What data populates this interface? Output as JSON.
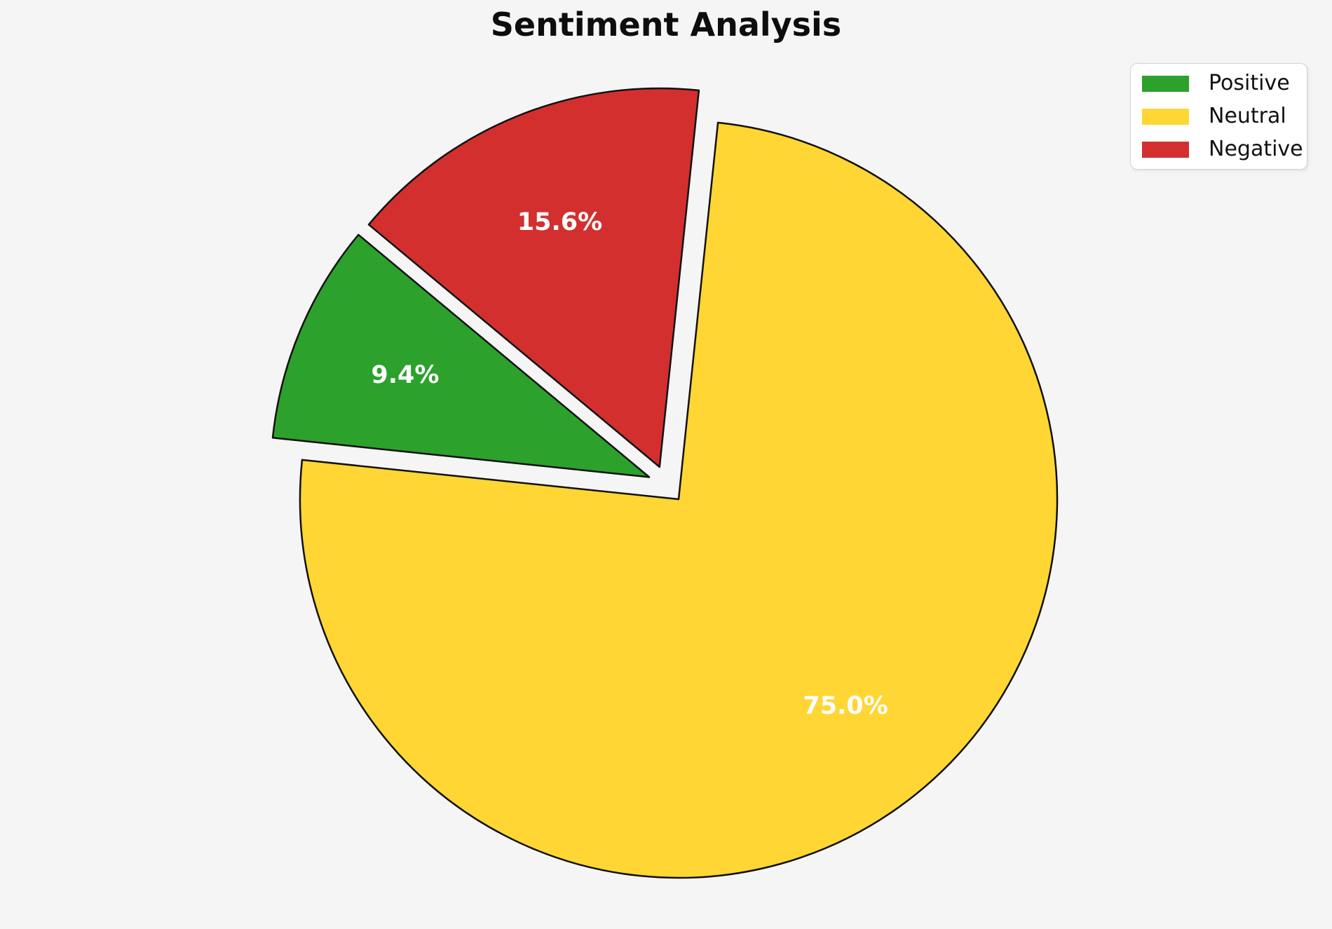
{
  "chart_data": {
    "type": "pie",
    "title": "Sentiment Analysis",
    "background_color": "#f5f5f6",
    "slices": [
      {
        "label": "Positive",
        "value": 9.4,
        "pct_label": "9.4%",
        "color": "#2ca12c"
      },
      {
        "label": "Neutral",
        "value": 75.0,
        "pct_label": "75.0%",
        "color": "#ffd633"
      },
      {
        "label": "Negative",
        "value": 15.6,
        "pct_label": "15.6%",
        "color": "#d32f2f"
      }
    ],
    "start_angle": 140.2,
    "direction": "counterclockwise",
    "explode": 0.05,
    "pct_distance": 0.7,
    "edge_color": "#111111",
    "pct_label_color": "#ffffff",
    "legend": {
      "position": "upper right",
      "labels": [
        "Positive",
        "Neutral",
        "Negative"
      ]
    }
  }
}
